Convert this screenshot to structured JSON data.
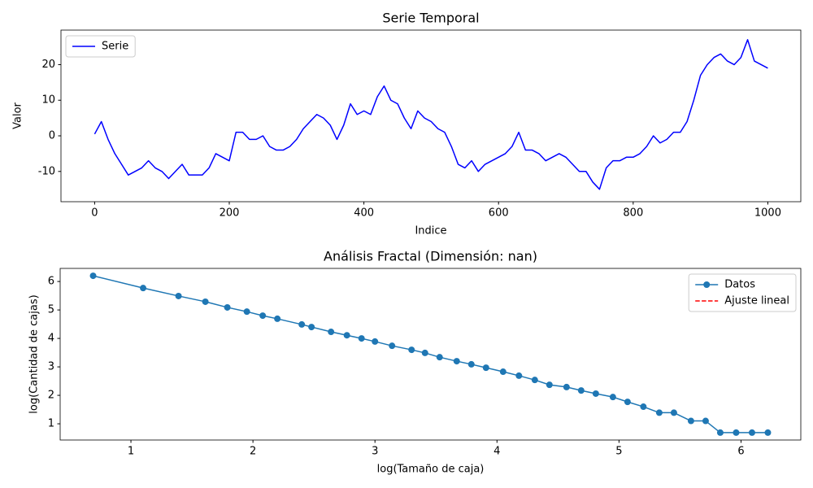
{
  "chart_data": [
    {
      "type": "line",
      "title": "Serie Temporal",
      "xlabel": "Indice",
      "ylabel": "Valor",
      "x": [
        0,
        10,
        20,
        30,
        40,
        50,
        60,
        70,
        80,
        90,
        100,
        110,
        120,
        130,
        140,
        150,
        160,
        170,
        180,
        190,
        200,
        210,
        220,
        230,
        240,
        250,
        260,
        270,
        280,
        290,
        300,
        310,
        320,
        330,
        340,
        350,
        360,
        370,
        380,
        390,
        400,
        410,
        420,
        430,
        440,
        450,
        460,
        470,
        480,
        490,
        500,
        510,
        520,
        530,
        540,
        550,
        560,
        570,
        580,
        590,
        600,
        610,
        620,
        630,
        640,
        650,
        660,
        670,
        680,
        690,
        700,
        710,
        720,
        730,
        740,
        750,
        760,
        770,
        780,
        790,
        800,
        810,
        820,
        830,
        840,
        850,
        860,
        870,
        880,
        890,
        900,
        910,
        920,
        930,
        940,
        950,
        960,
        970,
        980,
        990,
        1000
      ],
      "series": [
        {
          "name": "Serie",
          "color": "blue",
          "marker": null,
          "dash": null,
          "values": [
            0.5,
            4,
            -1,
            -5,
            -8,
            -11,
            -10,
            -9,
            -7,
            -9,
            -10,
            -12,
            -10,
            -8,
            -11,
            -11,
            -11,
            -9,
            -5,
            -6,
            -7,
            1,
            1,
            -1,
            -1,
            0,
            -3,
            -4,
            -4,
            -3,
            -1,
            2,
            4,
            6,
            5,
            3,
            -1,
            3,
            9,
            6,
            7,
            6,
            11,
            14,
            10,
            9,
            5,
            2,
            7,
            5,
            4,
            2,
            1,
            -3,
            -8,
            -9,
            -7,
            -10,
            -8,
            -7,
            -6,
            -5,
            -3,
            1,
            -4,
            -4,
            -5,
            -7,
            -6,
            -5,
            -6,
            -8,
            -10,
            -10,
            -13,
            -15,
            -9,
            -7,
            -7,
            -6,
            -6,
            -5,
            -3,
            0,
            -2,
            -1,
            1,
            1,
            4,
            10,
            17,
            20,
            22,
            23,
            21,
            20,
            22,
            27,
            21,
            20,
            19
          ]
        }
      ],
      "xlim": [
        -50,
        1049
      ],
      "ylim": [
        -18.5,
        29.7
      ],
      "xticks": [
        0,
        200,
        400,
        600,
        800,
        1000
      ],
      "yticks": [
        -10,
        0,
        10,
        20
      ],
      "grid": false,
      "legend": "upper left"
    },
    {
      "type": "line",
      "title": "Análisis Fractal (Dimensión: nan)",
      "xlabel": "log(Tamaño de caja)",
      "ylabel": "log(Cantidad de cajas)",
      "x": [
        0.69,
        1.1,
        1.39,
        1.61,
        1.79,
        1.95,
        2.08,
        2.2,
        2.4,
        2.48,
        2.64,
        2.77,
        2.89,
        3.0,
        3.14,
        3.3,
        3.41,
        3.53,
        3.67,
        3.79,
        3.91,
        4.05,
        4.18,
        4.31,
        4.43,
        4.57,
        4.69,
        4.81,
        4.95,
        5.07,
        5.2,
        5.33,
        5.45,
        5.59,
        5.71,
        5.83,
        5.96,
        6.09,
        6.22
      ],
      "series": [
        {
          "name": "Datos",
          "color": "#1f77b4",
          "marker": "o",
          "dash": null,
          "values": [
            6.2,
            5.77,
            5.49,
            5.29,
            5.09,
            4.94,
            4.8,
            4.69,
            4.49,
            4.4,
            4.23,
            4.11,
            4.0,
            3.89,
            3.74,
            3.6,
            3.49,
            3.34,
            3.2,
            3.09,
            2.97,
            2.83,
            2.69,
            2.54,
            2.37,
            2.29,
            2.17,
            2.06,
            1.94,
            1.77,
            1.6,
            1.39,
            1.39,
            1.1,
            1.1,
            0.69,
            0.69,
            0.69,
            0.69
          ]
        },
        {
          "name": "Ajuste lineal",
          "color": "red",
          "marker": null,
          "dash": "dashed",
          "values": [
            null,
            null,
            null,
            null,
            null,
            null,
            null,
            null,
            null,
            null,
            null,
            null,
            null,
            null,
            null,
            null,
            null,
            null,
            null,
            null,
            null,
            null,
            null,
            null,
            null,
            null,
            null,
            null,
            null,
            null,
            null,
            null,
            null,
            null,
            null,
            null,
            null,
            null,
            null
          ]
        }
      ],
      "xlim": [
        0.42,
        6.49
      ],
      "ylim": [
        0.43,
        6.46
      ],
      "xticks": [
        1,
        2,
        3,
        4,
        5,
        6
      ],
      "yticks": [
        1,
        2,
        3,
        4,
        5,
        6
      ],
      "grid": false,
      "legend": "upper right"
    }
  ]
}
